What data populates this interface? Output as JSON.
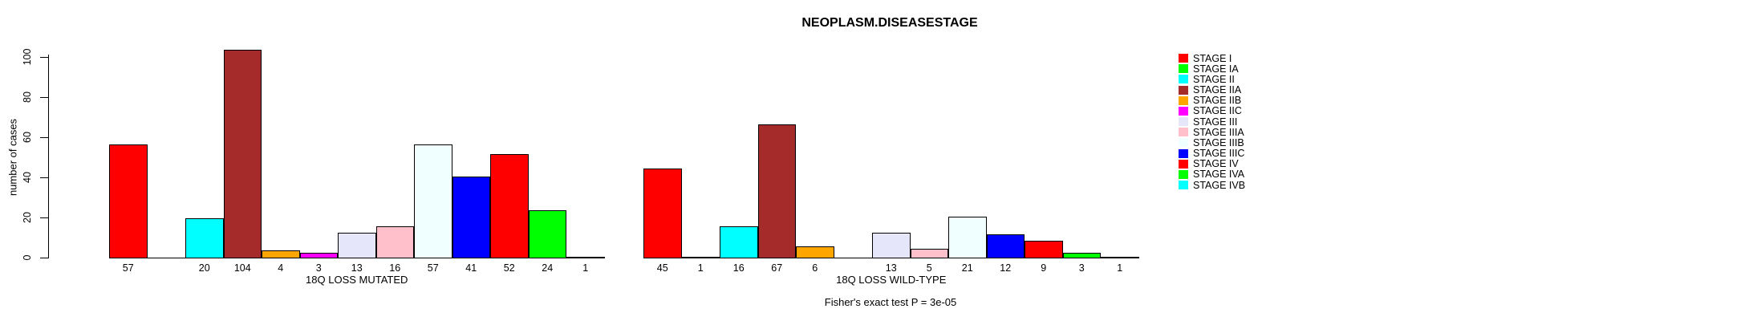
{
  "page": {
    "background": "#ffffff"
  },
  "chart_data": {
    "type": "bar",
    "title": "NEOPLASM.DISEASESTAGE",
    "ylabel": "number of cases",
    "ylim": [
      0,
      100
    ],
    "yticks": [
      0,
      20,
      40,
      60,
      80,
      100
    ],
    "grid": false,
    "legend_position": "right",
    "categories": [
      "STAGE I",
      "STAGE IA",
      "STAGE II",
      "STAGE IIA",
      "STAGE IIB",
      "STAGE IIC",
      "STAGE III",
      "STAGE IIIA",
      "STAGE IIIB",
      "STAGE IIIC",
      "STAGE IV",
      "STAGE IVA",
      "STAGE IVB"
    ],
    "colors": [
      "#FF0000",
      "#00FF00",
      "#00FFFF",
      "#A52A2A",
      "#FFA500",
      "#FF00FF",
      "#E6E6FA",
      "#FFC0CB",
      "#F0FFFF",
      "#0000FF",
      "#FF0000",
      "#00FF00",
      "#00FFFF"
    ],
    "groups": [
      {
        "label": "18Q LOSS MUTATED",
        "values": [
          57,
          null,
          20,
          104,
          4,
          3,
          13,
          16,
          57,
          41,
          52,
          24,
          1
        ]
      },
      {
        "label": "18Q LOSS WILD-TYPE",
        "values": [
          45,
          1,
          16,
          67,
          6,
          null,
          13,
          5,
          21,
          12,
          9,
          3,
          1
        ]
      }
    ],
    "bar_value_labels_shown": true,
    "annotation": "Fisher's exact test P = 3e-05"
  }
}
